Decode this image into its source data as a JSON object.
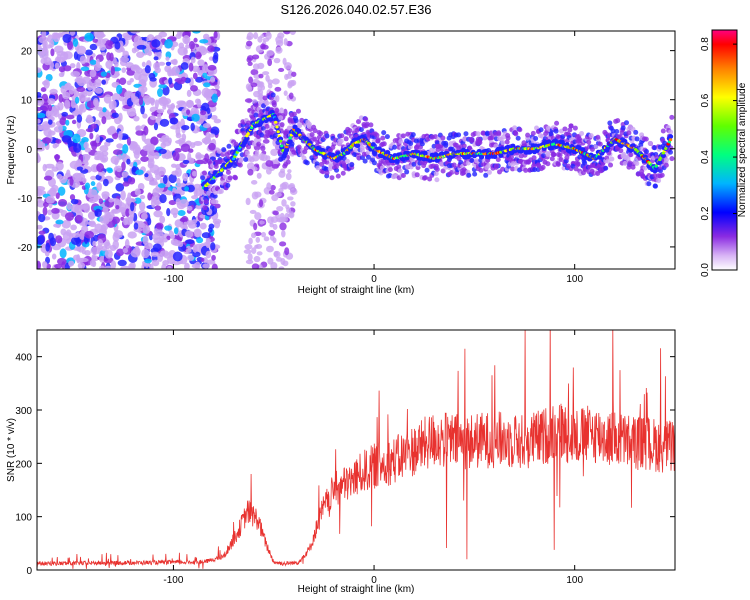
{
  "chart_data": [
    {
      "type": "heatmap",
      "title": "S126.2026.040.02.57.E36",
      "xlabel": "Height of straight line (km)",
      "ylabel": "Frequency (Hz)",
      "xlim": [
        -168,
        150
      ],
      "ylim": [
        -24.5,
        24
      ],
      "xticks": [
        -100,
        0,
        100
      ],
      "yticks": [
        -20,
        -10,
        0,
        10,
        20
      ],
      "colorbar": {
        "label": "Normalized spectral amplitude",
        "range": [
          0,
          0.85
        ],
        "ticks": [
          0.0,
          0.2,
          0.4,
          0.6,
          0.8
        ]
      },
      "ridge": {
        "x": [
          -85,
          -70,
          -60,
          -50,
          -45,
          -40,
          -35,
          -30,
          -25,
          -20,
          -15,
          -10,
          -5,
          0,
          10,
          20,
          30,
          40,
          50,
          60,
          70,
          80,
          90,
          100,
          110,
          120,
          130,
          140,
          148
        ],
        "frequency": [
          -8,
          -2,
          5,
          7,
          -1,
          4,
          2,
          0,
          -1,
          -2,
          -1,
          1,
          2,
          0,
          -2,
          -1,
          -2,
          -1,
          -1,
          -1,
          0,
          0,
          1,
          0,
          -2,
          2,
          0,
          -4,
          2
        ]
      }
    },
    {
      "type": "line",
      "xlabel": "Height of straight line (km)",
      "ylabel": "SNR (10 * v/v)",
      "xlim": [
        -168,
        150
      ],
      "ylim": [
        0,
        450
      ],
      "xticks": [
        -100,
        0,
        100
      ],
      "yticks": [
        0,
        100,
        200,
        300,
        400
      ],
      "color": "#e8322f",
      "series": [
        {
          "name": "SNR",
          "x": [
            -168,
            -140,
            -110,
            -85,
            -75,
            -68,
            -63,
            -58,
            -54,
            -50,
            -45,
            -38,
            -32,
            -26,
            -20,
            -12,
            -5,
            0,
            10,
            20,
            30,
            45,
            60,
            75,
            85,
            90,
            100,
            110,
            120,
            130,
            140,
            148
          ],
          "y": [
            12,
            13,
            14,
            15,
            25,
            70,
            110,
            95,
            50,
            15,
            12,
            14,
            40,
            110,
            150,
            165,
            185,
            195,
            205,
            225,
            245,
            240,
            245,
            240,
            250,
            265,
            250,
            255,
            245,
            240,
            235,
            230
          ]
        }
      ]
    }
  ]
}
